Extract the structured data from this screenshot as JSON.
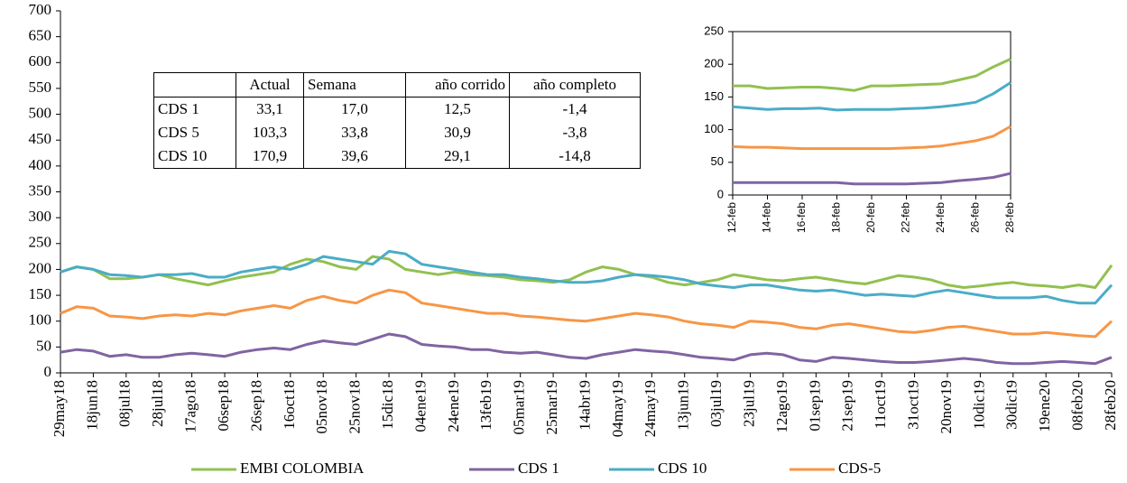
{
  "chart_data": [
    {
      "type": "line",
      "categories": [
        "29may18",
        null,
        "18jun18",
        null,
        "08jul18",
        null,
        "28jul18",
        null,
        "17ago18",
        null,
        "06sep18",
        null,
        "26sep18",
        null,
        "16oct18",
        null,
        "05nov18",
        null,
        "25nov18",
        null,
        "15dic18",
        null,
        "04ene19",
        null,
        "24ene19",
        null,
        "13feb19",
        null,
        "05mar19",
        null,
        "25mar19",
        null,
        "14abr19",
        null,
        "04may19",
        null,
        "24may19",
        null,
        "13jun19",
        null,
        "03jul19",
        null,
        "23jul19",
        null,
        "12ago19",
        null,
        "01sep19",
        null,
        "21sep19",
        null,
        "11oct19",
        null,
        "31oct19",
        null,
        "20nov19",
        null,
        "10dic19",
        null,
        "30dic19",
        null,
        "19ene20",
        null,
        "08feb20",
        null,
        "28feb20"
      ],
      "series": [
        {
          "name": "EMBI COLOMBIA",
          "color": "#92c050",
          "values": [
            195,
            205,
            200,
            182,
            182,
            185,
            190,
            182,
            176,
            170,
            178,
            185,
            190,
            195,
            210,
            220,
            215,
            205,
            200,
            225,
            220,
            200,
            195,
            190,
            195,
            190,
            188,
            185,
            180,
            178,
            175,
            180,
            195,
            205,
            200,
            190,
            185,
            175,
            170,
            175,
            180,
            190,
            185,
            180,
            178,
            182,
            185,
            180,
            175,
            172,
            180,
            188,
            185,
            180,
            170,
            165,
            168,
            172,
            175,
            170,
            168,
            165,
            170,
            165,
            208
          ]
        },
        {
          "name": "CDS 1",
          "color": "#8064a2",
          "values": [
            40,
            45,
            42,
            32,
            35,
            30,
            30,
            35,
            38,
            35,
            32,
            40,
            45,
            48,
            45,
            55,
            62,
            58,
            55,
            65,
            75,
            70,
            55,
            52,
            50,
            45,
            45,
            40,
            38,
            40,
            35,
            30,
            28,
            35,
            40,
            45,
            42,
            40,
            35,
            30,
            28,
            25,
            35,
            38,
            35,
            25,
            22,
            30,
            28,
            25,
            22,
            20,
            20,
            22,
            25,
            28,
            25,
            20,
            18,
            18,
            20,
            22,
            20,
            18,
            30
          ]
        },
        {
          "name": "CDS 10",
          "color": "#4bacc6",
          "values": [
            195,
            205,
            200,
            190,
            188,
            185,
            190,
            190,
            192,
            185,
            185,
            195,
            200,
            205,
            200,
            210,
            225,
            220,
            215,
            210,
            235,
            230,
            210,
            205,
            200,
            195,
            190,
            190,
            185,
            182,
            178,
            175,
            175,
            178,
            185,
            190,
            188,
            185,
            180,
            172,
            168,
            165,
            170,
            170,
            165,
            160,
            158,
            160,
            155,
            150,
            152,
            150,
            148,
            155,
            160,
            155,
            150,
            145,
            145,
            145,
            148,
            140,
            135,
            135,
            170
          ]
        },
        {
          "name": "CDS-5",
          "color": "#f79646",
          "values": [
            115,
            128,
            125,
            110,
            108,
            105,
            110,
            112,
            110,
            115,
            112,
            120,
            125,
            130,
            125,
            140,
            148,
            140,
            135,
            150,
            160,
            155,
            135,
            130,
            125,
            120,
            115,
            115,
            110,
            108,
            105,
            102,
            100,
            105,
            110,
            115,
            112,
            108,
            100,
            95,
            92,
            88,
            100,
            98,
            95,
            88,
            85,
            92,
            95,
            90,
            85,
            80,
            78,
            82,
            88,
            90,
            85,
            80,
            75,
            75,
            78,
            75,
            72,
            70,
            100
          ]
        }
      ],
      "ylim": [
        0,
        700
      ],
      "yticks": [
        0,
        50,
        100,
        150,
        200,
        250,
        300,
        350,
        400,
        450,
        500,
        550,
        600,
        650,
        700
      ],
      "legend": "bottom"
    },
    {
      "type": "line",
      "categories": [
        "12-feb",
        null,
        "14-feb",
        null,
        "16-feb",
        null,
        "18-feb",
        null,
        "20-feb",
        null,
        "22-feb",
        null,
        "24-feb",
        null,
        "26-feb",
        null,
        "28-feb"
      ],
      "series": [
        {
          "color": "#92c050",
          "values": [
            167,
            167,
            163,
            164,
            165,
            165,
            163,
            160,
            167,
            167,
            168,
            169,
            170,
            176,
            182,
            196,
            208
          ]
        },
        {
          "color": "#4bacc6",
          "values": [
            135,
            133,
            131,
            132,
            132,
            133,
            130,
            131,
            131,
            131,
            132,
            133,
            135,
            138,
            142,
            155,
            172
          ]
        },
        {
          "color": "#f79646",
          "values": [
            74,
            73,
            73,
            72,
            71,
            71,
            71,
            71,
            71,
            71,
            72,
            73,
            75,
            79,
            83,
            90,
            105
          ]
        },
        {
          "color": "#8064a2",
          "values": [
            19,
            19,
            19,
            19,
            19,
            19,
            19,
            17,
            17,
            17,
            17,
            18,
            19,
            22,
            24,
            27,
            33
          ]
        }
      ],
      "ylim": [
        0,
        250
      ],
      "yticks": [
        0,
        50,
        100,
        150,
        200,
        250
      ]
    }
  ],
  "table": {
    "header": [
      "Actual",
      "Semana",
      "año corrido",
      "año completo"
    ],
    "rows": [
      [
        "CDS 1",
        "33,1",
        "17,0",
        "12,5",
        "-1,4"
      ],
      [
        "CDS 5",
        "103,3",
        "33,8",
        "30,9",
        "-3,8"
      ],
      [
        "CDS 10",
        "170,9",
        "39,6",
        "29,1",
        "-14,8"
      ]
    ]
  }
}
